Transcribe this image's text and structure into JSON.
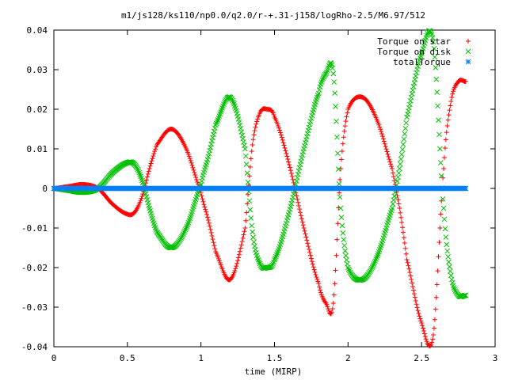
{
  "chart_data": {
    "type": "scatter",
    "title": "m1/js128/ks110/np0.0/q2.0/r-+.31-j158/logRho-2.5/M6.97/512",
    "xlabel": "time (MIRP)",
    "ylabel": "",
    "xlim": [
      0,
      3
    ],
    "ylim": [
      -0.04,
      0.04
    ],
    "xticks": [
      "0",
      "0.5",
      "1",
      "1.5",
      "2",
      "2.5",
      "3"
    ],
    "yticks": [
      "0.04",
      "0.03",
      "0.02",
      "0.01",
      "0",
      "-0.01",
      "-0.02",
      "-0.03",
      "-0.04"
    ],
    "legend_position": "top-right",
    "grid": false,
    "x": [
      0.0,
      0.1,
      0.2,
      0.3,
      0.4,
      0.5,
      0.55,
      0.6,
      0.65,
      0.7,
      0.8,
      0.9,
      1.0,
      1.05,
      1.1,
      1.2,
      1.3,
      1.35,
      1.4,
      1.45,
      1.5,
      1.6,
      1.7,
      1.8,
      1.85,
      1.9,
      1.95,
      2.0,
      2.1,
      2.2,
      2.3,
      2.35,
      2.4,
      2.5,
      2.58,
      2.65,
      2.7,
      2.75,
      2.8
    ],
    "series": [
      {
        "name": "Torque on star",
        "color": "#ff0000",
        "marker": "plus",
        "values": [
          0.0,
          0.0005,
          0.001,
          0.0,
          -0.004,
          -0.0065,
          -0.006,
          -0.002,
          0.005,
          0.011,
          0.015,
          0.01,
          -0.001,
          -0.008,
          -0.016,
          -0.023,
          -0.01,
          0.011,
          0.019,
          0.02,
          0.018,
          0.006,
          -0.01,
          -0.024,
          -0.029,
          -0.029,
          0.005,
          0.02,
          0.023,
          0.017,
          0.005,
          -0.005,
          -0.018,
          -0.034,
          -0.037,
          0.005,
          0.022,
          0.027,
          0.027
        ]
      },
      {
        "name": "Torque on disk",
        "color": "#00c000",
        "marker": "cross",
        "values": [
          0.0,
          -0.0005,
          -0.001,
          0.0,
          0.004,
          0.0065,
          0.006,
          0.002,
          -0.005,
          -0.011,
          -0.015,
          -0.01,
          0.001,
          0.008,
          0.016,
          0.023,
          0.01,
          -0.011,
          -0.019,
          -0.02,
          -0.018,
          -0.006,
          0.01,
          0.024,
          0.029,
          0.029,
          -0.005,
          -0.02,
          -0.023,
          -0.017,
          -0.005,
          0.005,
          0.018,
          0.034,
          0.037,
          -0.005,
          -0.022,
          -0.027,
          -0.027
        ]
      },
      {
        "name": "totalTorque",
        "color": "#0080ff",
        "marker": "star",
        "values": [
          0.0,
          0.0,
          0.0,
          0.0,
          0.0,
          0.0,
          0.0,
          0.0,
          0.0,
          0.0,
          0.0,
          0.0,
          0.0,
          0.0,
          0.0,
          0.0,
          0.0,
          0.0,
          0.0,
          0.0,
          0.0,
          0.0,
          0.0,
          0.0,
          0.0,
          0.0,
          0.0,
          0.0,
          0.0,
          0.0,
          0.0,
          0.0,
          0.0,
          0.0,
          0.0,
          0.0,
          0.0,
          0.0,
          0.0
        ]
      }
    ]
  }
}
